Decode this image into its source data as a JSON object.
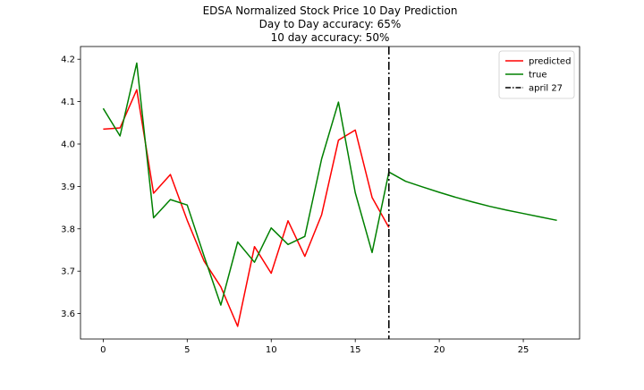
{
  "chart_data": {
    "type": "line",
    "title": "EDSA Normalized Stock Price 10 Day Prediction",
    "subtitle_lines": [
      "Day to Day accuracy: 65%",
      "10 day accuracy: 50%"
    ],
    "xlabel": "",
    "ylabel": "",
    "xlim": [
      -1.35,
      28.35
    ],
    "ylim": [
      3.54,
      4.23
    ],
    "x_ticks": [
      0,
      5,
      10,
      15,
      20,
      25
    ],
    "x_tick_labels": [
      "0",
      "5",
      "10",
      "15",
      "20",
      "25"
    ],
    "y_ticks": [
      3.6,
      3.7,
      3.8,
      3.9,
      4.0,
      4.1,
      4.2
    ],
    "y_tick_labels": [
      "3.6",
      "3.7",
      "3.8",
      "3.9",
      "4.0",
      "4.1",
      "4.2"
    ],
    "grid": false,
    "legend_position": "top-right",
    "series": [
      {
        "name": "predicted",
        "color": "#ff0000",
        "x": [
          0,
          1,
          2,
          3,
          4,
          5,
          6,
          7,
          8,
          9,
          10,
          11,
          12,
          13,
          14,
          15,
          16,
          17
        ],
        "y": [
          4.035,
          4.038,
          4.128,
          3.884,
          3.928,
          3.82,
          3.724,
          3.663,
          3.57,
          3.758,
          3.695,
          3.819,
          3.735,
          3.833,
          4.009,
          4.033,
          3.874,
          3.803
        ]
      },
      {
        "name": "true",
        "color": "#008000",
        "x": [
          0,
          1,
          2,
          3,
          4,
          5,
          6,
          7,
          8,
          9,
          10,
          11,
          12,
          13,
          14,
          15,
          16,
          17,
          18,
          19,
          20,
          21,
          22,
          23,
          24,
          25,
          26,
          27
        ],
        "y": [
          4.084,
          4.019,
          4.191,
          3.826,
          3.869,
          3.856,
          3.736,
          3.62,
          3.769,
          3.721,
          3.802,
          3.763,
          3.782,
          3.965,
          4.099,
          3.885,
          3.744,
          3.934,
          3.912,
          3.899,
          3.886,
          3.874,
          3.863,
          3.853,
          3.844,
          3.836,
          3.828,
          3.82
        ]
      }
    ],
    "vlines": [
      {
        "name": "april 27",
        "x": 17,
        "color": "#000000",
        "style": "dashdot"
      }
    ]
  }
}
